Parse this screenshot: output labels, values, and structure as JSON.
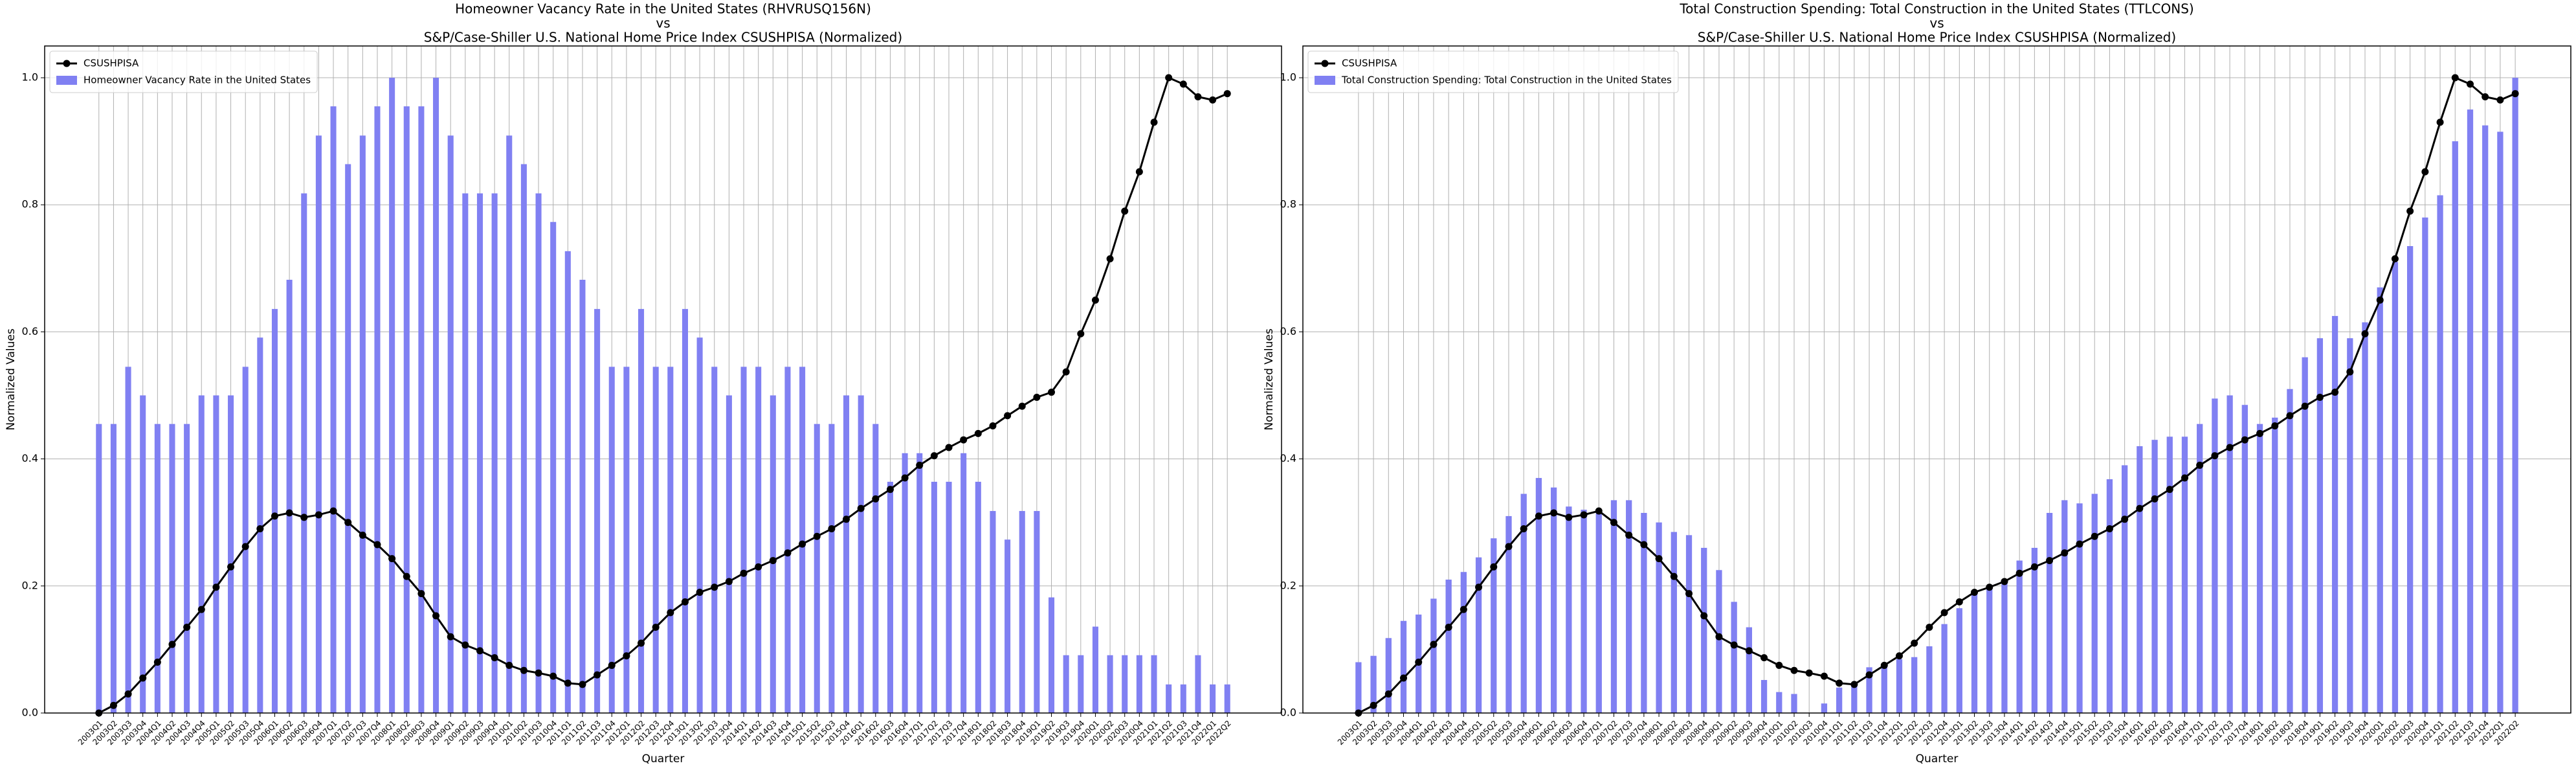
{
  "chart_data": [
    {
      "type": "bar",
      "title": [
        "Homeowner Vacancy Rate in the United States (RHVRUSQ156N)",
        "vs",
        "S&P/Case-Shiller U.S. National Home Price Index CSUSHPISA (Normalized)"
      ],
      "x_label": "Quarter",
      "y_label": "Normalized Values",
      "categories": [
        "2003Q1",
        "2003Q2",
        "2003Q3",
        "2003Q4",
        "2004Q1",
        "2004Q2",
        "2004Q3",
        "2004Q4",
        "2005Q1",
        "2005Q2",
        "2005Q3",
        "2005Q4",
        "2006Q1",
        "2006Q2",
        "2006Q3",
        "2006Q4",
        "2007Q1",
        "2007Q2",
        "2007Q3",
        "2007Q4",
        "2008Q1",
        "2008Q2",
        "2008Q3",
        "2008Q4",
        "2009Q1",
        "2009Q2",
        "2009Q3",
        "2009Q4",
        "2010Q1",
        "2010Q2",
        "2010Q3",
        "2010Q4",
        "2011Q1",
        "2011Q2",
        "2011Q3",
        "2011Q4",
        "2012Q1",
        "2012Q2",
        "2012Q3",
        "2012Q4",
        "2013Q1",
        "2013Q2",
        "2013Q3",
        "2013Q4",
        "2014Q1",
        "2014Q2",
        "2014Q3",
        "2014Q4",
        "2015Q1",
        "2015Q2",
        "2015Q3",
        "2015Q4",
        "2016Q1",
        "2016Q2",
        "2016Q3",
        "2016Q4",
        "2017Q1",
        "2017Q2",
        "2017Q3",
        "2017Q4",
        "2018Q1",
        "2018Q2",
        "2018Q3",
        "2018Q4",
        "2019Q1",
        "2019Q2",
        "2019Q3",
        "2019Q4",
        "2020Q1",
        "2020Q2",
        "2020Q3",
        "2020Q4",
        "2021Q1",
        "2021Q2",
        "2021Q3",
        "2021Q4",
        "2022Q1",
        "2022Q2"
      ],
      "series": [
        {
          "name": "CSUSHPISA",
          "type": "line",
          "color": "#000000",
          "values": [
            0,
            0.012,
            0.03,
            0.055,
            0.08,
            0.108,
            0.135,
            0.163,
            0.198,
            0.23,
            0.262,
            0.29,
            0.31,
            0.315,
            0.308,
            0.312,
            0.318,
            0.3,
            0.28,
            0.265,
            0.243,
            0.215,
            0.188,
            0.153,
            0.12,
            0.107,
            0.098,
            0.087,
            0.075,
            0.067,
            0.063,
            0.058,
            0.047,
            0.045,
            0.06,
            0.075,
            0.09,
            0.11,
            0.135,
            0.158,
            0.175,
            0.19,
            0.198,
            0.207,
            0.22,
            0.23,
            0.24,
            0.252,
            0.266,
            0.278,
            0.29,
            0.305,
            0.322,
            0.337,
            0.352,
            0.37,
            0.39,
            0.405,
            0.418,
            0.43,
            0.44,
            0.452,
            0.468,
            0.483,
            0.497,
            0.505,
            0.537,
            0.597,
            0.65,
            0.715,
            0.79,
            0.852,
            0.93,
            1.0,
            0.99,
            0.97,
            0.965,
            0.975
          ]
        },
        {
          "name": "Homeowner Vacancy Rate in the United States",
          "type": "bar",
          "color": "#8080f2",
          "values": [
            0.455,
            0.455,
            0.545,
            0.5,
            0.455,
            0.455,
            0.455,
            0.5,
            0.5,
            0.5,
            0.545,
            0.591,
            0.636,
            0.682,
            0.818,
            0.909,
            0.955,
            0.864,
            0.909,
            0.955,
            1.0,
            0.955,
            0.955,
            1.0,
            0.909,
            0.818,
            0.818,
            0.818,
            0.909,
            0.864,
            0.818,
            0.773,
            0.727,
            0.682,
            0.636,
            0.545,
            0.545,
            0.636,
            0.545,
            0.545,
            0.636,
            0.591,
            0.545,
            0.5,
            0.545,
            0.545,
            0.5,
            0.545,
            0.545,
            0.455,
            0.455,
            0.5,
            0.5,
            0.455,
            0.364,
            0.409,
            0.409,
            0.364,
            0.364,
            0.409,
            0.364,
            0.318,
            0.273,
            0.318,
            0.318,
            0.182,
            0.091,
            0.091,
            0.136,
            0.091,
            0.091,
            0.091,
            0.091,
            0.045,
            0.045,
            0.091,
            0.045,
            0.045
          ]
        }
      ],
      "ylim": [
        0,
        1.05
      ],
      "yticks": [
        {
          "value": 0,
          "label": "0.0"
        },
        {
          "value": 0.2,
          "label": "0.2"
        },
        {
          "value": 0.4,
          "label": "0.4"
        },
        {
          "value": 0.6,
          "label": "0.6"
        },
        {
          "value": 0.8,
          "label": "0.8"
        },
        {
          "value": 1,
          "label": "1.0"
        }
      ],
      "grid": true,
      "legend": "upper left"
    },
    {
      "type": "bar",
      "title": [
        "Total Construction Spending: Total Construction in the United States (TTLCONS)",
        "vs",
        "S&P/Case-Shiller U.S. National Home Price Index CSUSHPISA (Normalized)"
      ],
      "x_label": "Quarter",
      "y_label": "Normalized Values",
      "categories": [
        "2003Q1",
        "2003Q2",
        "2003Q3",
        "2003Q4",
        "2004Q1",
        "2004Q2",
        "2004Q3",
        "2004Q4",
        "2005Q1",
        "2005Q2",
        "2005Q3",
        "2005Q4",
        "2006Q1",
        "2006Q2",
        "2006Q3",
        "2006Q4",
        "2007Q1",
        "2007Q2",
        "2007Q3",
        "2007Q4",
        "2008Q1",
        "2008Q2",
        "2008Q3",
        "2008Q4",
        "2009Q1",
        "2009Q2",
        "2009Q3",
        "2009Q4",
        "2010Q1",
        "2010Q2",
        "2010Q3",
        "2010Q4",
        "2011Q1",
        "2011Q2",
        "2011Q3",
        "2011Q4",
        "2012Q1",
        "2012Q2",
        "2012Q3",
        "2012Q4",
        "2013Q1",
        "2013Q2",
        "2013Q3",
        "2013Q4",
        "2014Q1",
        "2014Q2",
        "2014Q3",
        "2014Q4",
        "2015Q1",
        "2015Q2",
        "2015Q3",
        "2015Q4",
        "2016Q1",
        "2016Q2",
        "2016Q3",
        "2016Q4",
        "2017Q1",
        "2017Q2",
        "2017Q3",
        "2017Q4",
        "2018Q1",
        "2018Q2",
        "2018Q3",
        "2018Q4",
        "2019Q1",
        "2019Q2",
        "2019Q3",
        "2019Q4",
        "2020Q1",
        "2020Q2",
        "2020Q3",
        "2020Q4",
        "2021Q1",
        "2021Q2",
        "2021Q3",
        "2021Q4",
        "2022Q1",
        "2022Q2"
      ],
      "series": [
        {
          "name": "CSUSHPISA",
          "type": "line",
          "color": "#000000",
          "values": [
            0,
            0.012,
            0.03,
            0.055,
            0.08,
            0.108,
            0.135,
            0.163,
            0.198,
            0.23,
            0.262,
            0.29,
            0.31,
            0.315,
            0.308,
            0.312,
            0.318,
            0.3,
            0.28,
            0.265,
            0.243,
            0.215,
            0.188,
            0.153,
            0.12,
            0.107,
            0.098,
            0.087,
            0.075,
            0.067,
            0.063,
            0.058,
            0.047,
            0.045,
            0.06,
            0.075,
            0.09,
            0.11,
            0.135,
            0.158,
            0.175,
            0.19,
            0.198,
            0.207,
            0.22,
            0.23,
            0.24,
            0.252,
            0.266,
            0.278,
            0.29,
            0.305,
            0.322,
            0.337,
            0.352,
            0.37,
            0.39,
            0.405,
            0.418,
            0.43,
            0.44,
            0.452,
            0.468,
            0.483,
            0.497,
            0.505,
            0.537,
            0.597,
            0.65,
            0.715,
            0.79,
            0.852,
            0.93,
            1.0,
            0.99,
            0.97,
            0.965,
            0.975
          ]
        },
        {
          "name": "Total Construction Spending: Total Construction in the United States",
          "type": "bar",
          "color": "#8080f2",
          "values": [
            0.08,
            0.09,
            0.118,
            0.145,
            0.155,
            0.18,
            0.21,
            0.222,
            0.245,
            0.275,
            0.31,
            0.345,
            0.37,
            0.355,
            0.325,
            0.32,
            0.32,
            0.335,
            0.335,
            0.315,
            0.3,
            0.285,
            0.28,
            0.26,
            0.225,
            0.175,
            0.135,
            0.052,
            0.033,
            0.03,
            0,
            0.015,
            0.04,
            0.045,
            0.072,
            0.078,
            0.085,
            0.088,
            0.105,
            0.14,
            0.165,
            0.19,
            0.2,
            0.21,
            0.24,
            0.26,
            0.315,
            0.335,
            0.33,
            0.345,
            0.368,
            0.39,
            0.42,
            0.43,
            0.435,
            0.435,
            0.455,
            0.495,
            0.5,
            0.485,
            0.455,
            0.465,
            0.51,
            0.56,
            0.59,
            0.625,
            0.59,
            0.615,
            0.67,
            0.71,
            0.735,
            0.78,
            0.815,
            0.9,
            0.95,
            0.925,
            0.915,
            1.0
          ]
        }
      ],
      "ylim": [
        0,
        1.05
      ],
      "yticks": [
        {
          "value": 0,
          "label": "0.0"
        },
        {
          "value": 0.2,
          "label": "0.2"
        },
        {
          "value": 0.4,
          "label": "0.4"
        },
        {
          "value": 0.6,
          "label": "0.6"
        },
        {
          "value": 0.8,
          "label": "0.8"
        },
        {
          "value": 1,
          "label": "1.0"
        }
      ],
      "grid": true,
      "legend": "upper left"
    }
  ]
}
